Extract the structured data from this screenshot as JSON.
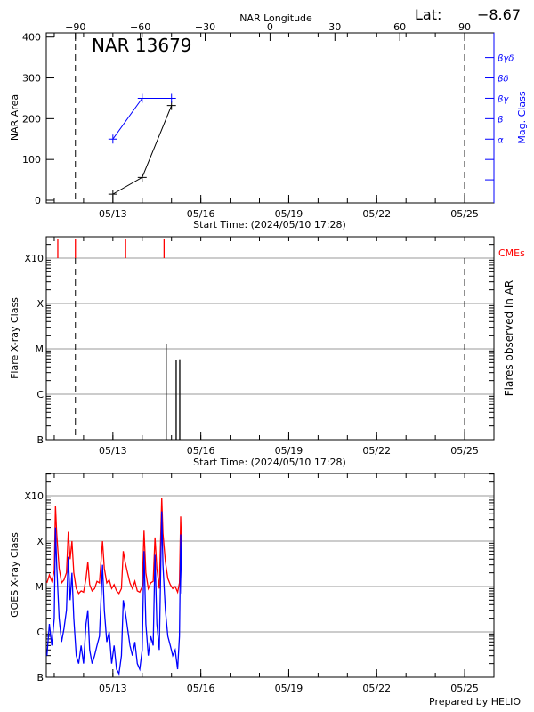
{
  "header": {
    "lat_label": "Lat:",
    "lat_value": "−8.67",
    "top_axis_label": "NAR Longitude",
    "footer": "Prepared by HELIO"
  },
  "colors": {
    "area": "#000000",
    "mag_class": "#0000ff",
    "cme": "#ff0000",
    "goes_long": "#ff0000",
    "goes_short": "#0000ff",
    "grid": "#999999"
  },
  "chart_data": [
    {
      "type": "line",
      "title": "NAR 13679",
      "xlabel": "Start Time: (2024/05/10 17:28)",
      "ylabel": "NAR Area",
      "y2label": "Mag. Class",
      "top_xlabel": "NAR Longitude",
      "xlim": [
        "2024-05-10T17:28",
        "2024-05-26T00:00"
      ],
      "x_ticks": [
        "2024-05-13",
        "2024-05-16",
        "2024-05-19",
        "2024-05-22",
        "2024-05-25"
      ],
      "x_tick_labels": [
        "05/13",
        "05/16",
        "05/19",
        "05/22",
        "05/25"
      ],
      "top_ticks": [
        -90,
        -60,
        -30,
        0,
        30,
        60,
        90
      ],
      "top_tick_labels": [
        "−90",
        "−60",
        "−30",
        "0",
        "30",
        "60",
        "90"
      ],
      "ylim": [
        -7,
        410
      ],
      "y_ticks": [
        0,
        100,
        200,
        300,
        400
      ],
      "y2_ticks": [
        50,
        100,
        150,
        200,
        250,
        300,
        350
      ],
      "y2_tick_labels": [
        "",
        "",
        "α",
        "β",
        "βγ",
        "βδ",
        "βγδ"
      ],
      "limb_crossings": [
        "2024-05-11T17:20",
        "2024-05-25T00:00"
      ],
      "series": [
        {
          "x": [
            "2024-05-13T00:00",
            "2024-05-14T00:00",
            "2024-05-15T00:00"
          ],
          "values": [
            15,
            56,
            232
          ]
        },
        {
          "x": [
            "2024-05-13T00:00",
            "2024-05-14T00:00",
            "2024-05-15T00:00"
          ],
          "values": [
            "α",
            "βγ",
            "βγ"
          ]
        }
      ]
    },
    {
      "type": "bar",
      "xlabel": "Start Time: (2024/05/10 17:28)",
      "ylabel": "Flare X-ray Class",
      "y2label": "Flares observed in AR",
      "cme_label": "CMEs",
      "y_scale": "log",
      "y_ticks": [
        1e-07,
        1e-06,
        1e-05,
        0.0001,
        0.001
      ],
      "y_tick_labels": [
        "B",
        "C",
        "M",
        "X",
        "X10"
      ],
      "grid": true,
      "flares": [
        {
          "time": "2024-05-14T19:40",
          "class": "M1.3"
        },
        {
          "time": "2024-05-15T03:50",
          "class": "C5.6"
        },
        {
          "time": "2024-05-15T06:45",
          "class": "C5.9"
        }
      ],
      "cmes": [
        "2024-05-11T02:55",
        "2024-05-11T17:20",
        "2024-05-13T10:25",
        "2024-05-14T17:55"
      ]
    },
    {
      "type": "line",
      "ylabel": "GOES X-ray Class",
      "y_scale": "log",
      "y_ticks": [
        1e-07,
        1e-06,
        1e-05,
        0.0001,
        0.001
      ],
      "y_tick_labels": [
        "B",
        "C",
        "M",
        "X",
        "X10"
      ],
      "grid": true,
      "x": [
        "2024-05-10T18:00",
        "2024-05-10T20:00",
        "2024-05-10T22:00",
        "2024-05-11T00:00",
        "2024-05-11T01:00",
        "2024-05-11T02:00",
        "2024-05-11T04:00",
        "2024-05-11T06:00",
        "2024-05-11T08:00",
        "2024-05-11T10:00",
        "2024-05-11T11:30",
        "2024-05-11T13:00",
        "2024-05-11T14:30",
        "2024-05-11T16:00",
        "2024-05-11T18:00",
        "2024-05-11T20:00",
        "2024-05-11T22:00",
        "2024-05-12T00:00",
        "2024-05-12T02:00",
        "2024-05-12T03:30",
        "2024-05-12T05:00",
        "2024-05-12T07:00",
        "2024-05-12T09:00",
        "2024-05-12T11:00",
        "2024-05-12T13:00",
        "2024-05-12T15:30",
        "2024-05-12T17:00",
        "2024-05-12T19:00",
        "2024-05-12T21:00",
        "2024-05-12T23:00",
        "2024-05-13T01:00",
        "2024-05-13T03:00",
        "2024-05-13T05:00",
        "2024-05-13T07:00",
        "2024-05-13T08:30",
        "2024-05-13T10:00",
        "2024-05-13T12:00",
        "2024-05-13T14:00",
        "2024-05-13T16:00",
        "2024-05-13T18:00",
        "2024-05-13T20:00",
        "2024-05-13T22:00",
        "2024-05-14T00:00",
        "2024-05-14T01:30",
        "2024-05-14T03:00",
        "2024-05-14T05:00",
        "2024-05-14T07:00",
        "2024-05-14T09:00",
        "2024-05-14T10:30",
        "2024-05-14T12:00",
        "2024-05-14T14:00",
        "2024-05-14T16:00",
        "2024-05-14T17:00",
        "2024-05-14T19:00",
        "2024-05-14T21:00",
        "2024-05-14T23:00",
        "2024-05-15T01:00",
        "2024-05-15T03:00",
        "2024-05-15T05:00",
        "2024-05-15T06:30",
        "2024-05-15T07:30",
        "2024-05-15T08:30"
      ],
      "series": [
        {
          "values": [
            1.2e-05,
            1.8e-05,
            1.3e-05,
            2.2e-05,
            0.0006,
            0.00015,
            2.5e-05,
            1.2e-05,
            1.4e-05,
            2e-05,
            0.00016,
            4e-05,
            0.0001,
            2e-05,
            9e-06,
            7e-06,
            8e-06,
            7.5e-06,
            1.5e-05,
            3.5e-05,
            1.1e-05,
            8e-06,
            9e-06,
            1.3e-05,
            1.2e-05,
            0.0001,
            2.5e-05,
            1.2e-05,
            1.4e-05,
            9e-06,
            1.1e-05,
            8e-06,
            7e-06,
            9e-06,
            6e-05,
            3.5e-05,
            2e-05,
            1.2e-05,
            9e-06,
            1.3e-05,
            8e-06,
            7.5e-06,
            1e-05,
            0.00017,
            2e-05,
            9e-06,
            1.2e-05,
            1.3e-05,
            0.00012,
            2.5e-05,
            9e-06,
            0.0009,
            0.00015,
            3.5e-05,
            1.5e-05,
            1.1e-05,
            9e-06,
            1e-05,
            7.5e-06,
            1.2e-05,
            0.00035,
            4e-05
          ]
        },
        {
          "values": [
            3e-07,
            1.5e-06,
            5e-07,
            2e-06,
            0.0002,
            3e-05,
            2e-06,
            6e-07,
            1.2e-06,
            3e-06,
            4.5e-05,
            5e-06,
            2e-05,
            2e-06,
            3e-07,
            2e-07,
            5e-07,
            2e-07,
            1.5e-06,
            3e-06,
            4e-07,
            2e-07,
            3e-07,
            5e-07,
            8e-07,
            3e-05,
            3e-06,
            6e-07,
            1e-06,
            2e-07,
            5e-07,
            1.5e-07,
            1.2e-07,
            3e-07,
            5e-06,
            3e-06,
            1.2e-06,
            5e-07,
            3e-07,
            6e-07,
            2e-07,
            1.5e-07,
            4e-07,
            6e-05,
            1.5e-06,
            3e-07,
            8e-07,
            5e-07,
            5e-05,
            1.5e-06,
            4e-07,
            0.00045,
            3e-05,
            3e-06,
            8e-07,
            5e-07,
            3e-07,
            4e-07,
            1.5e-07,
            8e-07,
            0.00014,
            7e-06
          ]
        }
      ]
    }
  ]
}
